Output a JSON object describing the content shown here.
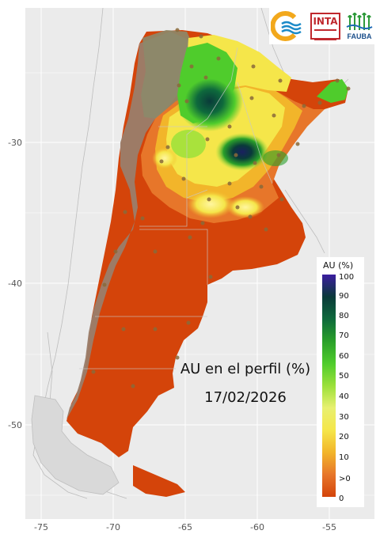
{
  "map": {
    "title": "AU en el perfil (%)",
    "date": "17/02/2026",
    "x_axis_ticks": [
      "-75",
      "-70",
      "-65",
      "-60",
      "-55"
    ],
    "y_axis_ticks": [
      "-30",
      "-40",
      "-50"
    ],
    "background_color": "#ebebeb"
  },
  "legend": {
    "title": "AU (%)",
    "labels": [
      "100",
      "90",
      "80",
      "70",
      "60",
      "50",
      "40",
      "30",
      "20",
      "10",
      ">0",
      "0"
    ]
  },
  "logos": {
    "inta_text": "INTA",
    "fauba_text": "FAUBA"
  },
  "colors": {
    "dry": "#d4440a",
    "low": "#f2b52a",
    "mid": "#f5e64a",
    "moist": "#4fcc2c",
    "wet": "#0e6a3c",
    "saturated": "#3b1da0",
    "no_data": "#9a7e6b"
  }
}
